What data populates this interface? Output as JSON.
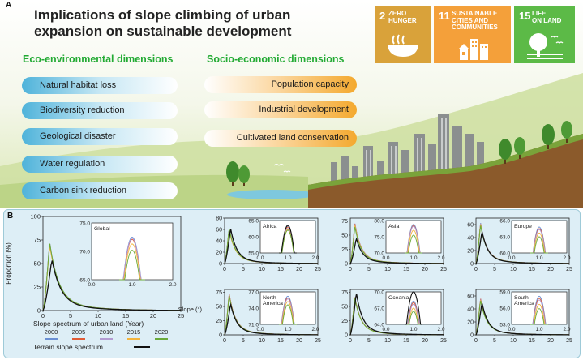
{
  "panel_a": {
    "label": "A",
    "title_line1": "Implications of slope climbing of urban",
    "title_line2": "expansion on sustainable development",
    "eco_header": "Eco-environmental dimensions",
    "socio_header": "Socio-economic dimensions",
    "eco_items": [
      "Natural habitat loss",
      "Biodiversity reduction",
      "Geological disaster",
      "Water regulation",
      "Carbon sink reduction"
    ],
    "socio_items": [
      "Population capacity",
      "Industrial development",
      "Cultivated land conservation"
    ],
    "sdgs": [
      {
        "num": "2",
        "text_line1": "ZERO",
        "text_line2": "HUNGER",
        "text_line3": "",
        "color": "#d9a23a",
        "icon": "food-bowl-icon"
      },
      {
        "num": "11",
        "text_line1": "SUSTAINABLE",
        "text_line2": "CITIES AND",
        "text_line3": "COMMUNITIES",
        "color": "#f4a03a",
        "icon": "city-buildings-icon"
      },
      {
        "num": "15",
        "text_line1": "LIFE",
        "text_line2": "ON LAND",
        "text_line3": "",
        "color": "#5cba47",
        "icon": "tree-birds-icon"
      }
    ]
  },
  "panel_b": {
    "label": "B",
    "ylabel": "Proportion (%)",
    "xlabel": "Slope (°)",
    "legend_title": "Slope spectrum of urban land (Year)",
    "legend_years": [
      {
        "year": "2000",
        "color": "#6a8fd3"
      },
      {
        "year": "2005",
        "color": "#e05b35"
      },
      {
        "year": "2010",
        "color": "#b39bd1"
      },
      {
        "year": "2015",
        "color": "#f4b43c"
      },
      {
        "year": "2020",
        "color": "#6aaa3a"
      }
    ],
    "terrain_label": "Terrain slope spectrum",
    "terrain_color": "#111111"
  },
  "chart_data": [
    {
      "type": "line",
      "region": "Global",
      "x_ticks": [
        "0",
        "5",
        "10",
        "15",
        "20",
        "25"
      ],
      "y_ticks": [
        "0",
        "25",
        "50",
        "75",
        "100"
      ],
      "ylim": [
        0,
        100
      ],
      "xlim": [
        0,
        25
      ],
      "peaks": {
        "2000": 73,
        "2005": 72,
        "2010": 73,
        "2015": 70,
        "2020": 73,
        "terrain": 55
      },
      "inset": {
        "label": "Global",
        "x_ticks": [
          "0.0",
          "1.0",
          "2.0"
        ],
        "y_ticks": [
          "65.0",
          "70.0",
          "75.0"
        ],
        "ylim": [
          65,
          75
        ],
        "peaks": {
          "2000": 72.5,
          "2005": 72.1,
          "2010": 72.3,
          "2015": 71.3,
          "2020": 70.2
        }
      }
    },
    {
      "type": "line",
      "region": "Africa",
      "x_ticks": [
        "0",
        "5",
        "10",
        "15",
        "20",
        "25"
      ],
      "y_ticks": [
        "0",
        "20",
        "40",
        "60",
        "80"
      ],
      "ylim": [
        0,
        80
      ],
      "xlim": [
        0,
        25
      ],
      "peaks": {
        "2000": 62,
        "2005": 62,
        "2010": 61,
        "2015": 60,
        "2020": 63,
        "terrain": 62
      },
      "inset": {
        "label": "Africa",
        "x_ticks": [
          "0.0",
          "1.0",
          "2.0"
        ],
        "y_ticks": [
          "55.0",
          "60.0",
          "65.0"
        ],
        "ylim": [
          55,
          65
        ],
        "peaks": {
          "2000": 63.2,
          "2005": 63.0,
          "2010": 62.6,
          "2015": 62.2,
          "2020": 62.0,
          "terrain": 63.5
        }
      }
    },
    {
      "type": "line",
      "region": "Asia",
      "x_ticks": [
        "0",
        "5",
        "10",
        "15",
        "20",
        "25"
      ],
      "y_ticks": [
        "0",
        "25",
        "50",
        "75"
      ],
      "ylim": [
        0,
        80
      ],
      "xlim": [
        0,
        25
      ],
      "peaks": {
        "2000": 72,
        "2005": 72,
        "2010": 71,
        "2015": 69,
        "2020": 66,
        "terrain": 45
      },
      "inset": {
        "label": "Asia",
        "x_ticks": [
          "0.0",
          "1.0",
          "2.0"
        ],
        "y_ticks": [
          "70.0",
          "75.0",
          "80.0"
        ],
        "ylim": [
          70,
          80
        ],
        "peaks": {
          "2000": 78.8,
          "2005": 78.4,
          "2010": 78.2,
          "2015": 77.0,
          "2020": 75.5
        }
      }
    },
    {
      "type": "line",
      "region": "Europe",
      "x_ticks": [
        "0",
        "5",
        "10",
        "15",
        "20",
        "25"
      ],
      "y_ticks": [
        "0",
        "20",
        "40",
        "60"
      ],
      "ylim": [
        0,
        70
      ],
      "xlim": [
        0,
        25
      ],
      "peaks": {
        "2000": 64,
        "2005": 63,
        "2010": 63,
        "2015": 62,
        "2020": 60,
        "terrain": 50
      },
      "inset": {
        "label": "Europe",
        "x_ticks": [
          "0.0",
          "1.0",
          "2.0"
        ],
        "y_ticks": [
          "60.0",
          "63.0",
          "66.0"
        ],
        "ylim": [
          60,
          66
        ],
        "peaks": {
          "2000": 64.8,
          "2005": 64.5,
          "2010": 64.3,
          "2015": 63.7,
          "2020": 63.0
        }
      }
    },
    {
      "type": "line",
      "region": "North America",
      "x_ticks": [
        "0",
        "5",
        "10",
        "15",
        "20",
        "25"
      ],
      "y_ticks": [
        "0",
        "25",
        "50",
        "75"
      ],
      "ylim": [
        0,
        80
      ],
      "xlim": [
        0,
        25
      ],
      "peaks": {
        "2000": 74,
        "2005": 74,
        "2010": 73,
        "2015": 72,
        "2020": 71,
        "terrain": 55
      },
      "inset": {
        "label_line1": "North",
        "label_line2": "America",
        "x_ticks": [
          "0.0",
          "1.0",
          "2.0"
        ],
        "y_ticks": [
          "71.0",
          "74.0",
          "77.0"
        ],
        "ylim": [
          71,
          77
        ],
        "peaks": {
          "2000": 76.2,
          "2005": 75.9,
          "2010": 75.7,
          "2015": 75.2,
          "2020": 74.6
        }
      }
    },
    {
      "type": "line",
      "region": "Oceania",
      "x_ticks": [
        "0",
        "5",
        "10",
        "15",
        "20",
        "25"
      ],
      "y_ticks": [
        "0",
        "25",
        "50",
        "75"
      ],
      "ylim": [
        0,
        80
      ],
      "xlim": [
        0,
        25
      ],
      "peaks": {
        "2000": 68,
        "2005": 68,
        "2010": 67,
        "2015": 66,
        "2020": 66,
        "terrain": 75
      },
      "inset": {
        "label": "Oceania",
        "x_ticks": [
          "0.0",
          "1.0",
          "2.0"
        ],
        "y_ticks": [
          "64.0",
          "67.0",
          "70.0"
        ],
        "ylim": [
          64,
          70
        ],
        "peaks": {
          "2000": 68.3,
          "2005": 68.0,
          "2010": 67.7,
          "2015": 67.0,
          "2020": 66.4,
          "terrain": 70
        }
      }
    },
    {
      "type": "line",
      "region": "South America",
      "x_ticks": [
        "0",
        "5",
        "10",
        "15",
        "20",
        "25"
      ],
      "y_ticks": [
        "0",
        "20",
        "40",
        "60"
      ],
      "ylim": [
        0,
        70
      ],
      "xlim": [
        0,
        25
      ],
      "peaks": {
        "2000": 57,
        "2005": 57,
        "2010": 56,
        "2015": 55,
        "2020": 54,
        "terrain": 50
      },
      "inset": {
        "label_line1": "South",
        "label_line2": "America",
        "x_ticks": [
          "0.0",
          "1.0",
          "2.0"
        ],
        "y_ticks": [
          "53.0",
          "56.0",
          "59.0"
        ],
        "ylim": [
          53,
          59
        ],
        "peaks": {
          "2000": 58.2,
          "2005": 57.8,
          "2010": 57.5,
          "2015": 56.7,
          "2020": 55.9
        }
      }
    }
  ]
}
